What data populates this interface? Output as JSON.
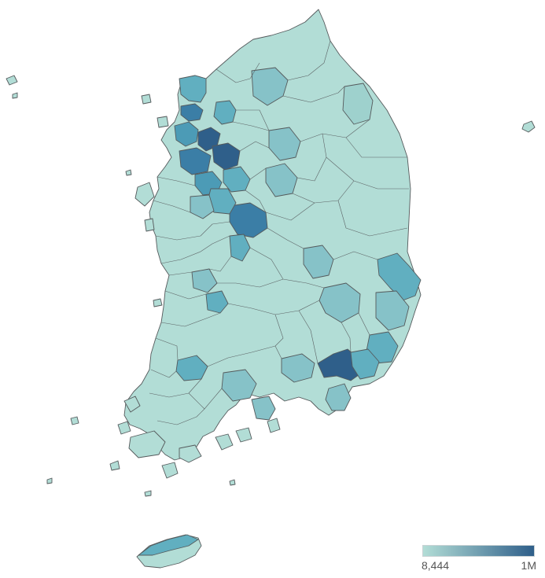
{
  "legend": {
    "min_label": "8,444",
    "max_label": "1M",
    "color_low": "#b2ddd6",
    "color_high": "#2f5f8a"
  },
  "palette": {
    "lightest": "#b2ddd6",
    "light": "#9ed1cd",
    "mid_light": "#86c2c8",
    "mid": "#61afc0",
    "mid_dark": "#4c9bb6",
    "dark": "#3b7ea6",
    "darkest": "#2f5f8a",
    "border": "#555a5c"
  }
}
